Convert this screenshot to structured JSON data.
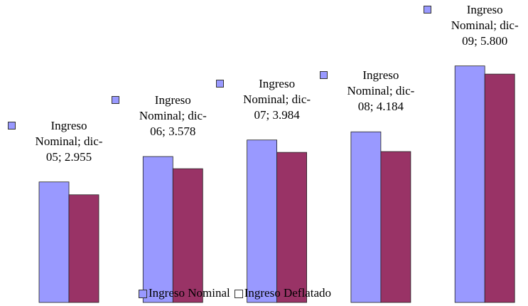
{
  "chart_data": {
    "type": "bar",
    "series": [
      {
        "name": "Ingreso Nominal",
        "color": "#9999ff",
        "values": [
          2.955,
          3.578,
          3.984,
          4.184,
          5.8
        ],
        "value_labels": [
          "Ingreso Nominal; dic-05; 2.955",
          "Ingreso Nominal; dic-06; 3.578",
          "Ingreso Nominal; dic-07; 3.984",
          "Ingreso Nominal; dic-08; 4.184",
          "Ingreso Nominal; dic-09; 5.800"
        ]
      },
      {
        "name": "Ingreso Deflatado",
        "color": "#993366",
        "values": [
          2.64,
          3.28,
          3.68,
          3.7,
          5.6
        ]
      }
    ],
    "legend": "bottom"
  }
}
